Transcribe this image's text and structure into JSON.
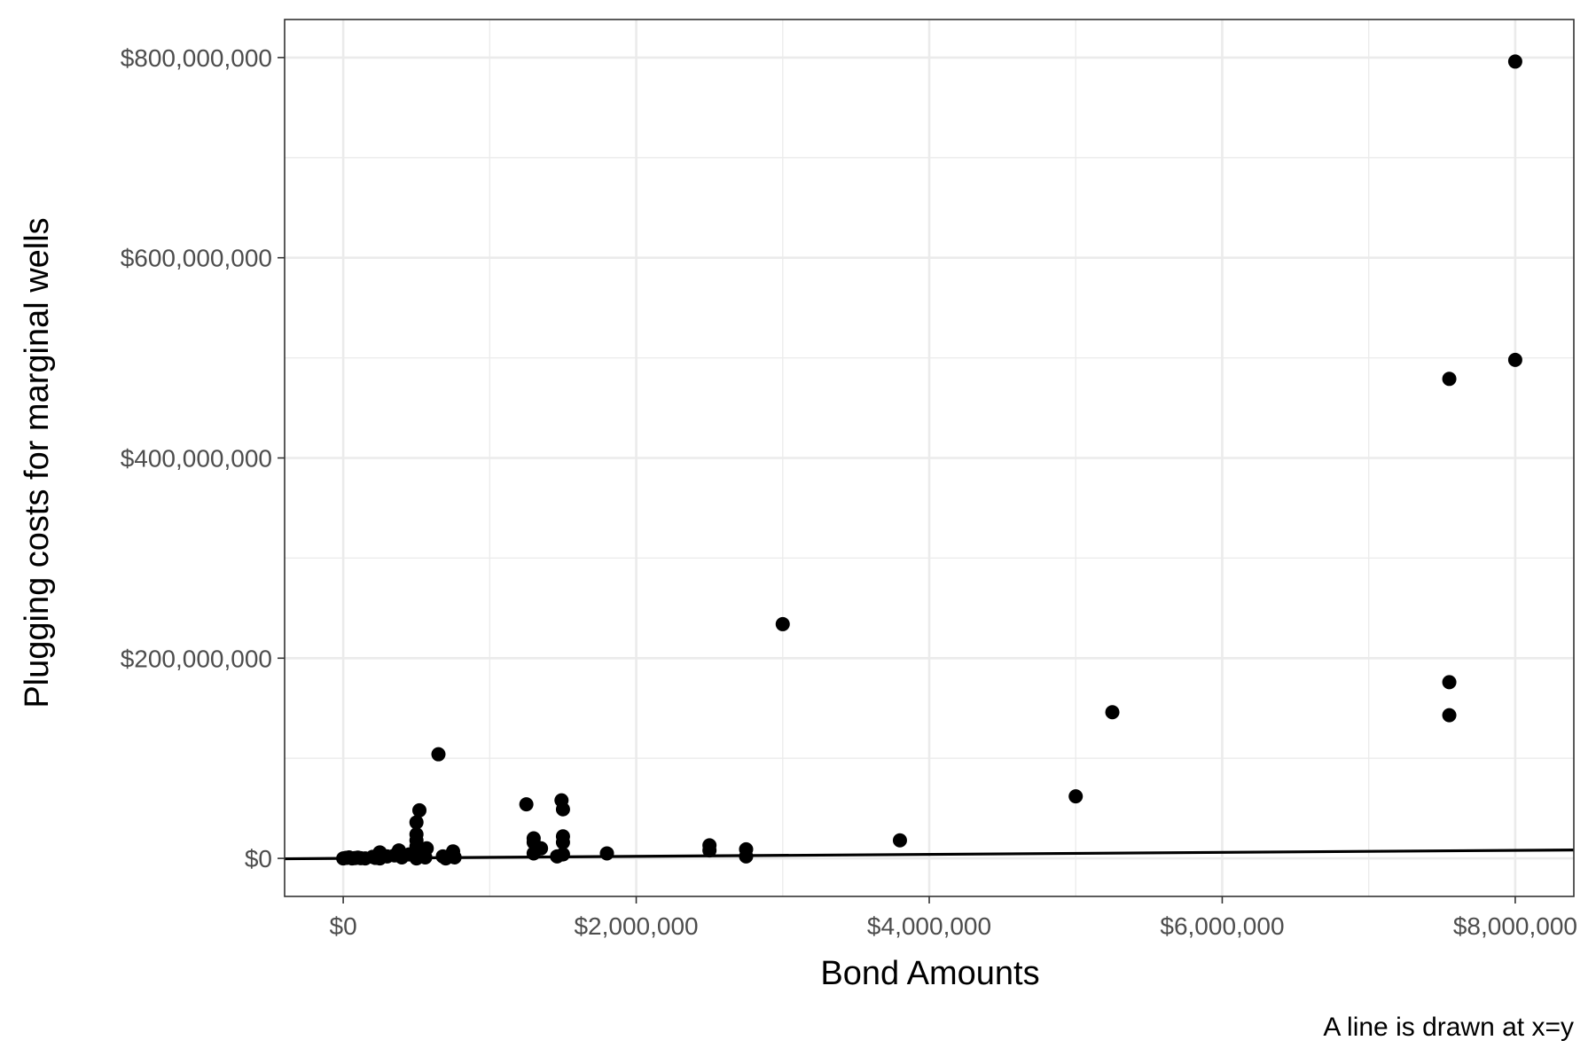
{
  "chart_data": {
    "type": "scatter",
    "title": "",
    "xlabel": "Bond Amounts",
    "ylabel": "Plugging costs for marginal wells",
    "caption": "A line is drawn at x=y",
    "xlim": [
      -400000,
      8400000
    ],
    "ylim": [
      -38000000,
      838000000
    ],
    "x_ticks": [
      0,
      2000000,
      4000000,
      6000000,
      8000000
    ],
    "x_tick_labels": [
      "$0",
      "$2,000,000",
      "$4,000,000",
      "$6,000,000",
      "$8,000,000"
    ],
    "y_ticks": [
      0,
      200000000,
      400000000,
      600000000,
      800000000
    ],
    "y_tick_labels": [
      "$0",
      "$200,000,000",
      "$400,000,000",
      "$600,000,000",
      "$800,000,000"
    ],
    "x_minor": [
      1000000,
      3000000,
      5000000,
      7000000
    ],
    "y_minor": [
      100000000,
      300000000,
      500000000,
      700000000
    ],
    "grid": true,
    "reference_line": {
      "slope": 1,
      "intercept": 0,
      "label": "x=y"
    },
    "colors": {
      "points": "#000000",
      "line": "#000000",
      "grid": "#ebebeb",
      "border": "#333333"
    },
    "points": [
      {
        "x": 0,
        "y": 0
      },
      {
        "x": 20000,
        "y": 500000
      },
      {
        "x": 40000,
        "y": 1000000
      },
      {
        "x": 60000,
        "y": 0
      },
      {
        "x": 80000,
        "y": 300000
      },
      {
        "x": 100000,
        "y": 800000
      },
      {
        "x": 120000,
        "y": 200000
      },
      {
        "x": 150000,
        "y": 0
      },
      {
        "x": 200000,
        "y": 1500000
      },
      {
        "x": 220000,
        "y": 500000
      },
      {
        "x": 250000,
        "y": 3000000
      },
      {
        "x": 250000,
        "y": 6000000
      },
      {
        "x": 250000,
        "y": 0
      },
      {
        "x": 300000,
        "y": 2000000
      },
      {
        "x": 350000,
        "y": 3000000
      },
      {
        "x": 380000,
        "y": 8000000
      },
      {
        "x": 400000,
        "y": 1000000
      },
      {
        "x": 450000,
        "y": 4000000
      },
      {
        "x": 500000,
        "y": 12000000
      },
      {
        "x": 500000,
        "y": 18000000
      },
      {
        "x": 500000,
        "y": 24000000
      },
      {
        "x": 500000,
        "y": 36000000
      },
      {
        "x": 500000,
        "y": 5000000
      },
      {
        "x": 500000,
        "y": 0
      },
      {
        "x": 520000,
        "y": 48000000
      },
      {
        "x": 540000,
        "y": 3000000
      },
      {
        "x": 550000,
        "y": 8000000
      },
      {
        "x": 560000,
        "y": 1000000
      },
      {
        "x": 570000,
        "y": 10000000
      },
      {
        "x": 650000,
        "y": 104000000
      },
      {
        "x": 680000,
        "y": 2000000
      },
      {
        "x": 700000,
        "y": 0
      },
      {
        "x": 740000,
        "y": 4000000
      },
      {
        "x": 750000,
        "y": 7000000
      },
      {
        "x": 760000,
        "y": 1000000
      },
      {
        "x": 1250000,
        "y": 54000000
      },
      {
        "x": 1300000,
        "y": 20000000
      },
      {
        "x": 1300000,
        "y": 16000000
      },
      {
        "x": 1300000,
        "y": 5000000
      },
      {
        "x": 1350000,
        "y": 10000000
      },
      {
        "x": 1460000,
        "y": 2000000
      },
      {
        "x": 1490000,
        "y": 58000000
      },
      {
        "x": 1500000,
        "y": 49000000
      },
      {
        "x": 1500000,
        "y": 22000000
      },
      {
        "x": 1500000,
        "y": 16000000
      },
      {
        "x": 1500000,
        "y": 4000000
      },
      {
        "x": 1800000,
        "y": 5000000
      },
      {
        "x": 2500000,
        "y": 13000000
      },
      {
        "x": 2500000,
        "y": 8000000
      },
      {
        "x": 2750000,
        "y": 9000000
      },
      {
        "x": 2750000,
        "y": 2000000
      },
      {
        "x": 3000000,
        "y": 234000000
      },
      {
        "x": 3800000,
        "y": 18000000
      },
      {
        "x": 5000000,
        "y": 62000000
      },
      {
        "x": 5250000,
        "y": 146000000
      },
      {
        "x": 7550000,
        "y": 479000000
      },
      {
        "x": 7550000,
        "y": 176000000
      },
      {
        "x": 7550000,
        "y": 143000000
      },
      {
        "x": 8000000,
        "y": 796000000
      },
      {
        "x": 8000000,
        "y": 498000000
      }
    ]
  }
}
